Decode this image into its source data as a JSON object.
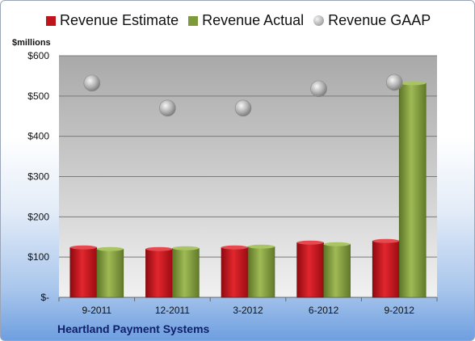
{
  "chart_data": {
    "type": "bar",
    "categories": [
      "9-2011",
      "12-2011",
      "3-2012",
      "6-2012",
      "9-2012"
    ],
    "series": [
      {
        "name": "Revenue Estimate",
        "type": "bar",
        "color": "#c0141c",
        "values": [
          124,
          120,
          124,
          136,
          140
        ]
      },
      {
        "name": "Revenue Actual",
        "type": "bar",
        "color": "#7f9a3a",
        "values": [
          120,
          122,
          126,
          132,
          532
        ]
      },
      {
        "name": "Revenue GAAP",
        "type": "scatter",
        "color": "#a6a6a6",
        "values": [
          532,
          470,
          470,
          518,
          534
        ]
      }
    ],
    "ylabel": "$millions",
    "ylim": [
      0,
      600
    ],
    "yticks": [
      {
        "value": 0,
        "label": "$-"
      },
      {
        "value": 100,
        "label": "$100"
      },
      {
        "value": 200,
        "label": "$200"
      },
      {
        "value": 300,
        "label": "$300"
      },
      {
        "value": 400,
        "label": "$400"
      },
      {
        "value": 500,
        "label": "$500"
      },
      {
        "value": 600,
        "label": "$600"
      }
    ],
    "legend_position": "top",
    "grid": true
  },
  "company": "Heartland Payment Systems"
}
